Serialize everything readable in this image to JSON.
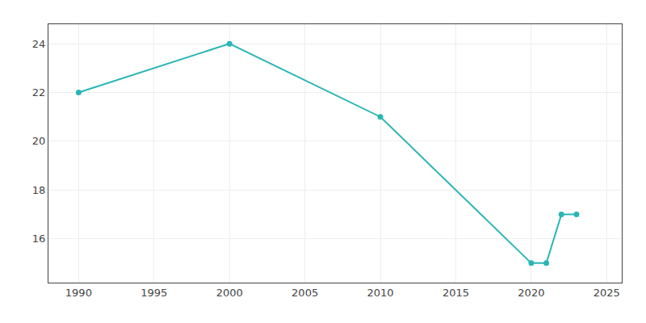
{
  "chart_data": {
    "type": "line",
    "x": [
      1990,
      2000,
      2010,
      2020,
      2021,
      2022,
      2023
    ],
    "values": [
      22,
      24,
      21,
      15,
      15,
      17,
      17
    ],
    "color": "#2ab5b5",
    "marker": "circle",
    "xlim": [
      1988,
      2026
    ],
    "ylim": [
      14.2,
      24.8
    ],
    "xticks": [
      1990,
      1995,
      2000,
      2005,
      2010,
      2015,
      2020,
      2025
    ],
    "yticks": [
      16,
      18,
      20,
      22,
      24
    ],
    "grid": true
  }
}
